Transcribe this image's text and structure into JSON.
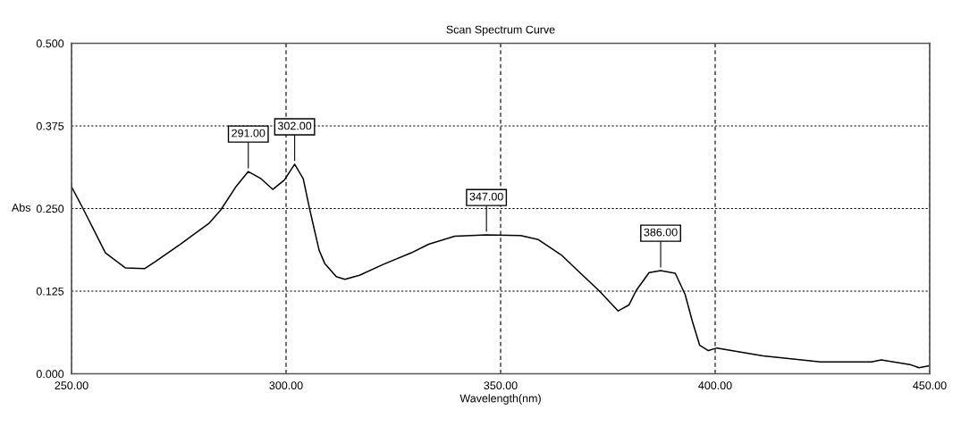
{
  "chart_data": {
    "type": "line",
    "title": "Scan Spectrum Curve",
    "xlabel": "Wavelength(nm)",
    "ylabel": "Abs",
    "x": [
      250,
      252.6,
      257.9,
      262.6,
      267.0,
      269.4,
      275.4,
      282.1,
      284.8,
      288.2,
      291.2,
      294.2,
      296.9,
      299.6,
      302.0,
      304.0,
      305.6,
      307.7,
      309.0,
      311.7,
      313.7,
      317.1,
      322.5,
      329.2,
      333.2,
      339.3,
      346.7,
      354.7,
      358.8,
      364.1,
      368.8,
      372.9,
      377.4,
      379.9,
      381.6,
      384.6,
      387.3,
      390.7,
      393.0,
      394.7,
      396.4,
      398.4,
      400.4,
      411.2,
      424.6,
      436.4,
      438.7,
      445.4,
      447.5,
      449.8
    ],
    "series": [
      {
        "color": "#000000",
        "values": [
          0.283,
          0.251,
          0.183,
          0.16,
          0.159,
          0.169,
          0.196,
          0.228,
          0.248,
          0.282,
          0.306,
          0.295,
          0.279,
          0.293,
          0.317,
          0.295,
          0.246,
          0.187,
          0.167,
          0.147,
          0.143,
          0.149,
          0.165,
          0.183,
          0.196,
          0.208,
          0.21,
          0.209,
          0.203,
          0.18,
          0.151,
          0.126,
          0.095,
          0.104,
          0.126,
          0.153,
          0.156,
          0.152,
          0.12,
          0.079,
          0.043,
          0.035,
          0.039,
          0.027,
          0.018,
          0.018,
          0.021,
          0.014,
          0.009,
          0.012
        ]
      }
    ],
    "xlim": [
      250,
      450
    ],
    "xticks": [
      {
        "value": 250,
        "label": "250.00"
      },
      {
        "value": 300,
        "label": "300.00"
      },
      {
        "value": 350,
        "label": "350.00"
      },
      {
        "value": 400,
        "label": "400.00"
      },
      {
        "value": 450,
        "label": "450.00"
      }
    ],
    "ylim": [
      0,
      0.5
    ],
    "yticks": [
      {
        "value": 0,
        "label": "0.000"
      },
      {
        "value": 0.125,
        "label": "0.125"
      },
      {
        "value": 0.25,
        "label": "0.250"
      },
      {
        "value": 0.375,
        "label": "0.375"
      },
      {
        "value": 0.5,
        "label": "0.500"
      }
    ],
    "grid": true,
    "marker": "none",
    "line_style": "solid",
    "annotations": [
      {
        "text": "291.00",
        "x": 291.2,
        "y": 0.306
      },
      {
        "text": "302.00",
        "x": 302.0,
        "y": 0.317
      },
      {
        "text": "347.00",
        "x": 346.7,
        "y": 0.21
      },
      {
        "text": "386.00",
        "x": 387.3,
        "y": 0.156
      }
    ]
  }
}
